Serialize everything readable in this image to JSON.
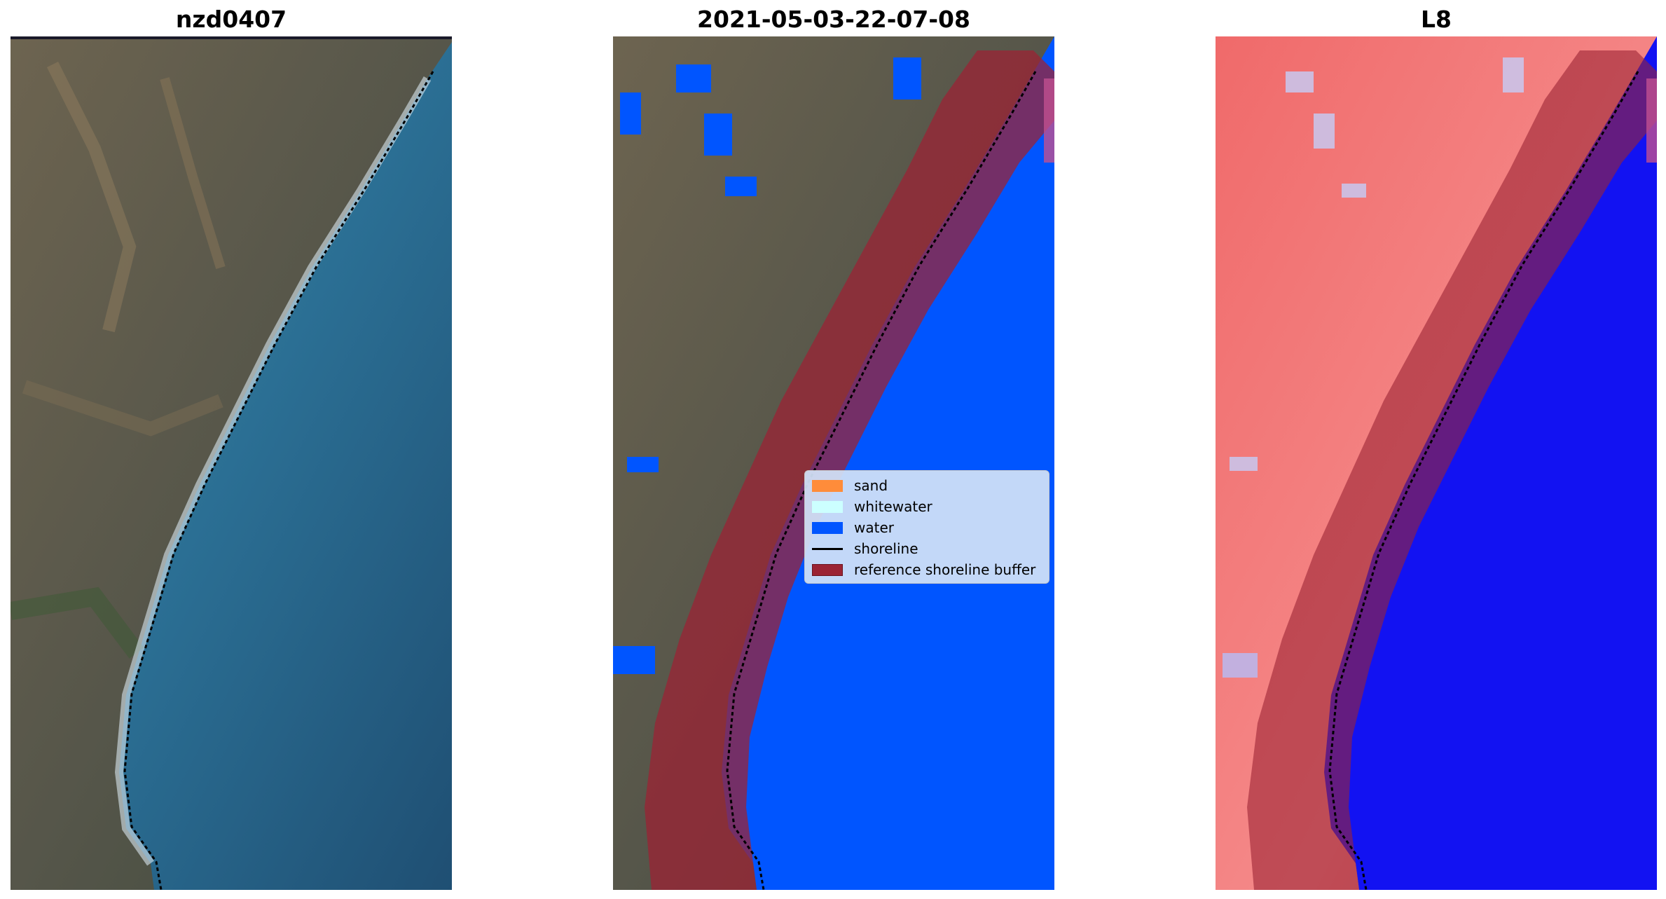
{
  "panels": [
    {
      "title": "nzd0407"
    },
    {
      "title": "2021-05-03-22-07-08"
    },
    {
      "title": "L8"
    }
  ],
  "legend": {
    "items": [
      {
        "label": "sand",
        "color": "#ff8c3a"
      },
      {
        "label": "whitewater",
        "color": "#ccffff"
      },
      {
        "label": "water",
        "color": "#0055ff"
      },
      {
        "label": "shoreline",
        "color": "#000000"
      },
      {
        "label": "reference shoreline buffer",
        "color": "#9b2334"
      }
    ]
  },
  "colors": {
    "sea": "#2a6f95",
    "land": "#5b5a49",
    "water_class": "#0055ff",
    "buffer": "#9b2334",
    "index_land": "#f06060",
    "index_water": "#1010f0"
  }
}
